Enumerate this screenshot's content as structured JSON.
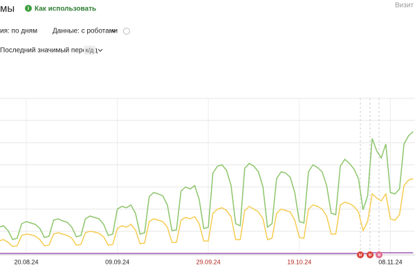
{
  "header": {
    "title": "мы",
    "help_link": "Как использовать",
    "right_tab": "Визит",
    "grouping": "ия: по дням",
    "data_mode": "Данные: с роботами",
    "attribution": "Последний значимый переход",
    "attribution_badge": "к/д"
  },
  "chart_data": {
    "type": "line",
    "categories": [
      null,
      null,
      null,
      null,
      null,
      null,
      "20.08.24",
      null,
      null,
      null,
      null,
      null,
      null,
      null,
      null,
      null,
      null,
      null,
      null,
      null,
      null,
      null,
      null,
      null,
      null,
      null,
      "09.09.24",
      null,
      null,
      null,
      null,
      null,
      null,
      null,
      null,
      null,
      null,
      null,
      null,
      null,
      null,
      null,
      null,
      null,
      null,
      null,
      "29.09.24",
      null,
      null,
      null,
      null,
      null,
      null,
      null,
      null,
      null,
      null,
      null,
      null,
      null,
      null,
      null,
      null,
      null,
      null,
      null,
      "19.10.24",
      null,
      null,
      null,
      null,
      null,
      null,
      null,
      null,
      null,
      null,
      null,
      null,
      null,
      null,
      null,
      null,
      null,
      null,
      null,
      "08.11.24",
      null,
      null,
      null,
      null,
      null
    ],
    "red_labels": [
      "29.09.24",
      "19.10.24"
    ],
    "red_label_color": "#b3261e",
    "ylim": [
      0,
      258
    ],
    "annotations": [
      "м",
      "м",
      "м"
    ],
    "series": [
      {
        "color": "#8cc56a",
        "values": [
          40,
          42,
          35,
          22,
          24,
          45,
          48,
          46,
          44,
          38,
          25,
          27,
          50,
          52,
          49,
          47,
          40,
          26,
          28,
          52,
          56,
          54,
          52,
          44,
          28,
          30,
          66,
          70,
          68,
          72,
          60,
          30,
          32,
          84,
          90,
          88,
          85,
          72,
          35,
          36,
          92,
          98,
          95,
          100,
          80,
          38,
          40,
          118,
          128,
          130,
          122,
          100,
          45,
          42,
          125,
          132,
          128,
          120,
          98,
          40,
          45,
          110,
          120,
          118,
          112,
          90,
          48,
          46,
          120,
          130,
          126,
          120,
          100,
          60,
          58,
          128,
          138,
          132,
          124,
          110,
          65,
          85,
          168,
          150,
          140,
          160,
          90,
          88,
          95,
          160,
          172,
          178
        ]
      },
      {
        "color": "#f5cc50",
        "values": [
          20,
          22,
          18,
          12,
          13,
          28,
          30,
          29,
          27,
          22,
          13,
          14,
          30,
          32,
          30,
          28,
          24,
          14,
          15,
          32,
          34,
          33,
          31,
          26,
          14,
          15,
          38,
          42,
          40,
          44,
          36,
          16,
          17,
          48,
          52,
          50,
          48,
          40,
          18,
          18,
          50,
          54,
          52,
          55,
          45,
          20,
          20,
          60,
          66,
          68,
          64,
          55,
          22,
          22,
          64,
          70,
          66,
          62,
          52,
          22,
          24,
          60,
          66,
          64,
          62,
          50,
          25,
          24,
          66,
          72,
          70,
          66,
          56,
          30,
          30,
          72,
          76,
          74,
          70,
          62,
          35,
          48,
          88,
          82,
          78,
          88,
          52,
          50,
          58,
          100,
          108,
          110
        ]
      },
      {
        "color": "#9b59b6",
        "values": [
          2,
          2,
          2,
          2,
          2,
          2,
          2,
          2,
          2,
          2,
          2,
          2,
          2,
          2,
          2,
          2,
          2,
          2,
          2,
          2,
          2,
          2,
          2,
          2,
          2,
          2,
          2,
          2,
          2,
          2,
          2,
          2,
          2,
          2,
          2,
          2,
          2,
          2,
          2,
          2,
          2,
          2,
          2,
          2,
          2,
          2,
          2,
          2,
          2,
          2,
          2,
          2,
          2,
          2,
          2,
          2,
          2,
          2,
          2,
          2,
          2,
          2,
          2,
          2,
          2,
          2,
          2,
          2,
          2,
          2,
          2,
          2,
          2,
          2,
          2,
          2,
          2,
          2,
          2,
          2,
          2,
          2,
          3,
          3,
          3,
          3,
          3,
          3,
          3,
          3,
          3,
          3
        ]
      }
    ]
  }
}
